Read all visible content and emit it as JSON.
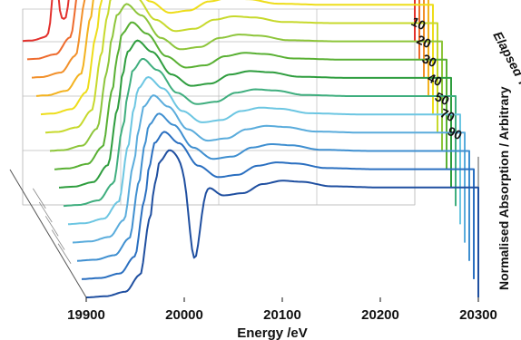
{
  "chart_data": {
    "type": "line",
    "style": "3D waterfall of stacked spectra",
    "xlabel": "Energy /eV",
    "ylabel": "Normalised Absorption / Arbitrary",
    "zlabel": "Elapsed Time / Minutes",
    "xlim": [
      19900,
      20300
    ],
    "x_ticks": [
      "19900",
      "20000",
      "20100",
      "20200",
      "20300"
    ],
    "z_ticks": [
      "10",
      "20",
      "30",
      "40",
      "50",
      "70",
      "90"
    ],
    "grid": true,
    "legend": "none",
    "series_count": 15,
    "series_colors": [
      "#1f4fa0",
      "#2a6fc0",
      "#3f8fd0",
      "#5aacdc",
      "#6cc6e2",
      "#3fae7e",
      "#2e9d3e",
      "#59b033",
      "#8dc53a",
      "#c7d92c",
      "#eedd1a",
      "#f3b21f",
      "#f2902a",
      "#ee6b2d",
      "#e3312d"
    ],
    "series_annotations": [
      "edge dip ~20010 eV (earliest spectrum)",
      "sharp pre-peak ~19933 eV (latest spectrum)"
    ],
    "curve_shape_x": [
      19900,
      19920,
      19940,
      19955,
      19965,
      19970,
      19975,
      19985,
      20000,
      20020,
      20040,
      20060,
      20080,
      20100,
      20120,
      20150,
      20200,
      20300
    ],
    "curve_shape_y": [
      0.0,
      0.01,
      0.05,
      0.2,
      0.7,
      1.0,
      1.2,
      1.3,
      1.2,
      1.0,
      0.9,
      0.92,
      1.0,
      1.03,
      1.02,
      0.98,
      0.97,
      0.97
    ]
  }
}
